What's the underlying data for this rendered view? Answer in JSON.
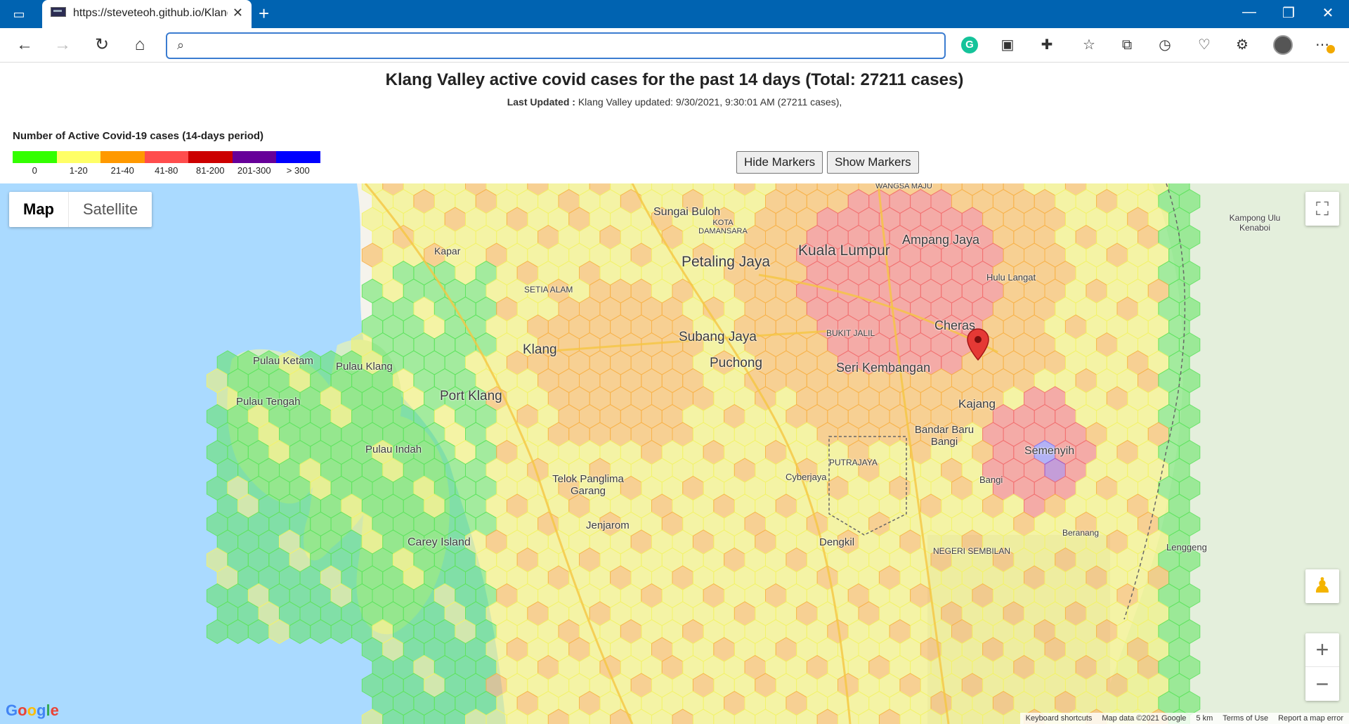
{
  "browser": {
    "tab_title": "https://steveteoh.github.io/Klang",
    "address_placeholder": "",
    "new_tab": "+",
    "tab_close": "✕"
  },
  "page": {
    "title": "Klang Valley active covid cases for the past 14 days (Total: 27211 cases)",
    "last_updated_label": "Last Updated :",
    "last_updated_value": " Klang Valley updated: 9/30/2021, 9:30:01 AM (27211 cases),"
  },
  "legend": {
    "title": "Number of Active Covid-19 cases (14-days period)",
    "items": [
      {
        "label": "0",
        "color": "#33ff00"
      },
      {
        "label": "1-20",
        "color": "#ffff66"
      },
      {
        "label": "21-40",
        "color": "#ff9900"
      },
      {
        "label": "41-80",
        "color": "#ff4d4d"
      },
      {
        "label": "81-200",
        "color": "#cc0000"
      },
      {
        "label": "201-300",
        "color": "#660099"
      },
      {
        "label": "> 300",
        "color": "#0000ff"
      }
    ]
  },
  "buttons": {
    "hide_markers": "Hide Markers",
    "show_markers": "Show Markers"
  },
  "map": {
    "type_map": "Map",
    "type_satellite": "Satellite",
    "zoom_in": "+",
    "zoom_out": "−",
    "logo": "Google",
    "footer": {
      "shortcuts": "Keyboard shortcuts",
      "data": "Map data ©2021 Google",
      "scale": "5 km",
      "terms": "Terms of Use",
      "report": "Report a map error"
    },
    "labels": {
      "klang": "Klang",
      "port_klang": "Port Klang",
      "petaling_jaya": "Petaling Jaya",
      "kuala_lumpur": "Kuala Lumpur",
      "ampang_jaya": "Ampang Jaya",
      "subang_jaya": "Subang Jaya",
      "puchong": "Puchong",
      "cheras": "Cheras",
      "seri_kembangan": "Seri Kembangan",
      "kajang": "Kajang",
      "semenyih": "Semenyih",
      "sungai_buloh": "Sungai Buloh",
      "pulau_ketam": "Pulau Ketam",
      "pulau_klang": "Pulau Klang",
      "pulau_tengah": "Pulau Tengah",
      "pulau_indah": "Pulau Indah",
      "carey_island": "Carey Island",
      "telok_panglima_garang": "Telok Panglima Garang",
      "jenjarom": "Jenjarom",
      "dengkil": "Dengkil",
      "cyberjaya": "Cyberjaya",
      "putrajaya": "PUTRAJAYA",
      "bangi": "Bangi",
      "bandar_baru_bangi": "Bandar Baru Bangi",
      "hulu_langat": "Hulu Langat",
      "kapar": "Kapar",
      "kampong_ulu_kenaboi": "Kampong Ulu Kenaboi",
      "lenggeng": "Lenggeng",
      "beranang": "Beranang",
      "shah_alam_setia": "SETIA ALAM",
      "bukit_jalil": "BUKIT JALIL",
      "wangsa_maju": "WANGSA MAJU",
      "kota_damansara": "KOTA DAMANSARA",
      "negeri_sembilan": "NEGERI SEMBILAN"
    }
  },
  "colors": {
    "titlebar": "#0063b1",
    "sea": "#aadaff",
    "marker": "#e53935"
  }
}
